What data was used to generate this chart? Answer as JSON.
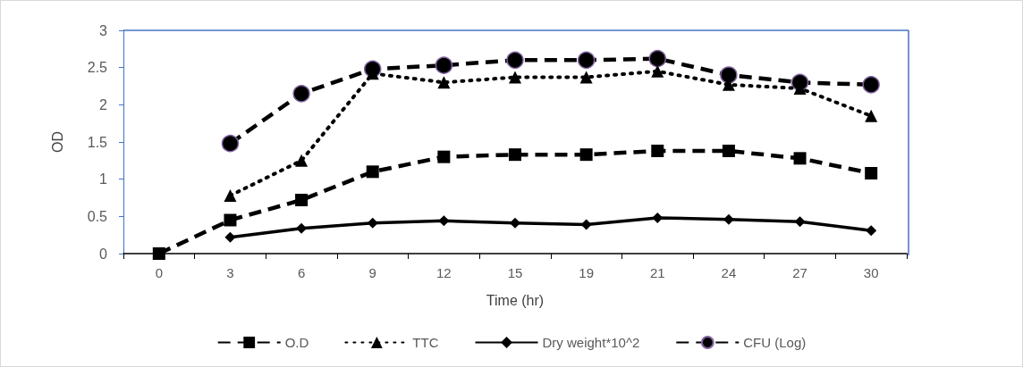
{
  "chart_data": {
    "type": "line",
    "categories": [
      "0",
      "3",
      "6",
      "9",
      "12",
      "15",
      "19",
      "21",
      "24",
      "27",
      "30"
    ],
    "xlabel": "Time (hr)",
    "ylabel": "OD",
    "ylim": [
      0,
      3
    ],
    "yticks": [
      0,
      0.5,
      1,
      1.5,
      2,
      2.5,
      3
    ],
    "grid": false,
    "legend": "bottom",
    "series": [
      {
        "name": "O.D",
        "color": "#000000",
        "marker": "square",
        "line_style": "dashed",
        "values": [
          0,
          0.45,
          0.72,
          1.1,
          1.3,
          1.33,
          1.33,
          1.38,
          1.38,
          1.28,
          1.08
        ]
      },
      {
        "name": "TTC",
        "color": "#000000",
        "marker": "triangle",
        "line_style": "dotted",
        "values": [
          null,
          0.78,
          1.25,
          2.42,
          2.3,
          2.37,
          2.37,
          2.45,
          2.27,
          2.22,
          1.85
        ]
      },
      {
        "name": "Dry weight*10^2",
        "color": "#000000",
        "marker": "diamond",
        "line_style": "solid",
        "values": [
          null,
          0.22,
          0.34,
          0.41,
          0.44,
          0.41,
          0.39,
          0.48,
          0.46,
          0.43,
          0.31
        ]
      },
      {
        "name": "CFU (Log)",
        "color": "#000000",
        "marker": "circle",
        "line_style": "dashed",
        "values": [
          null,
          1.48,
          2.15,
          2.48,
          2.53,
          2.6,
          2.6,
          2.62,
          2.4,
          2.3,
          2.27
        ]
      }
    ]
  }
}
